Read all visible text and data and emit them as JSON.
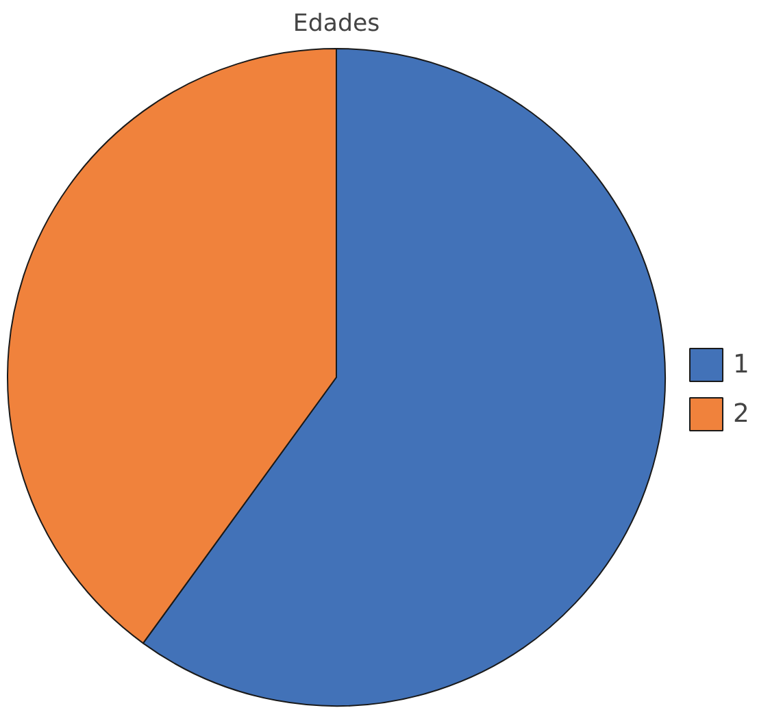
{
  "chart_data": {
    "type": "pie",
    "title": "Edades",
    "categories": [
      "1",
      "2"
    ],
    "values": [
      60,
      40
    ],
    "colors": [
      "#4272b8",
      "#f0823c"
    ],
    "legend": "right"
  }
}
